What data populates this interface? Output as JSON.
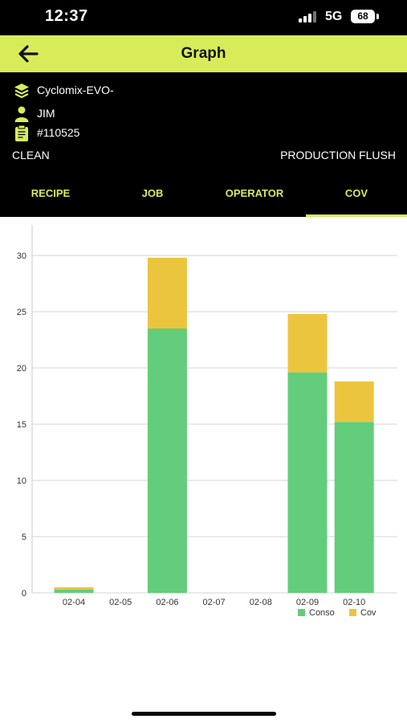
{
  "status_bar": {
    "time": "12:37",
    "network": "5G",
    "battery": "68"
  },
  "app_bar": {
    "title": "Graph",
    "back_icon": "arrow-left-icon"
  },
  "info": {
    "machine": "Cyclomix-EVO-",
    "operator": "JIM",
    "job_number": "#110525",
    "left_label": "CLEAN",
    "right_label": "PRODUCTION FLUSH"
  },
  "tabs": [
    {
      "label": "RECIPE",
      "active": false
    },
    {
      "label": "JOB",
      "active": false
    },
    {
      "label": "OPERATOR",
      "active": false
    },
    {
      "label": "COV",
      "active": true
    }
  ],
  "colors": {
    "accent": "#d8ec5a",
    "conso": "#63cd7c",
    "cov": "#ecc53f"
  },
  "chart_data": {
    "type": "bar",
    "stacked": true,
    "categories": [
      "02-04",
      "02-05",
      "02-06",
      "02-07",
      "02-08",
      "02-09",
      "02-10"
    ],
    "series": [
      {
        "name": "Conso",
        "values": [
          0.3,
          0,
          23.5,
          0,
          0,
          19.6,
          15.2
        ]
      },
      {
        "name": "Cov",
        "values": [
          0.2,
          0,
          6.3,
          0,
          0,
          5.2,
          3.6
        ]
      }
    ],
    "ylim": [
      0,
      30
    ],
    "yticks": [
      0,
      5,
      10,
      15,
      20,
      25,
      30
    ],
    "grid": true,
    "legend": "bottom-right"
  }
}
